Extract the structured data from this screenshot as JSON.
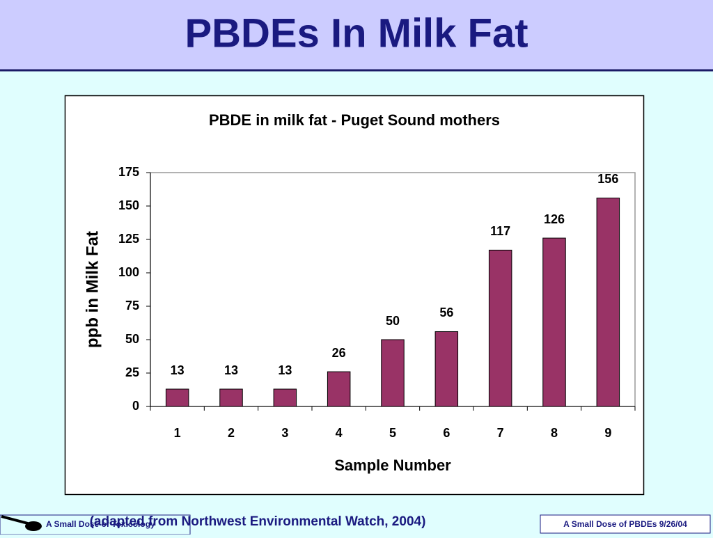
{
  "slide": {
    "title": "PBDEs In Milk Fat",
    "caption": "(adapted from Northwest Environmental Watch, 2004)",
    "footer_left": "A Small Dose of Toxicology",
    "footer_right": "A Small Dose of PBDEs  9/26/04"
  },
  "chart_data": {
    "type": "bar",
    "title": "PBDE in milk fat - Puget Sound mothers",
    "x_label": "Sample Number",
    "y_label": "ppb in Milk Fat",
    "categories": [
      "1",
      "2",
      "3",
      "4",
      "5",
      "6",
      "7",
      "8",
      "9"
    ],
    "values": [
      13,
      13,
      13,
      26,
      50,
      56,
      117,
      126,
      156
    ],
    "color": "#993366",
    "ylim": [
      0,
      175
    ],
    "yticks": [
      0,
      25,
      50,
      75,
      100,
      125,
      150,
      175
    ],
    "grid": false
  }
}
